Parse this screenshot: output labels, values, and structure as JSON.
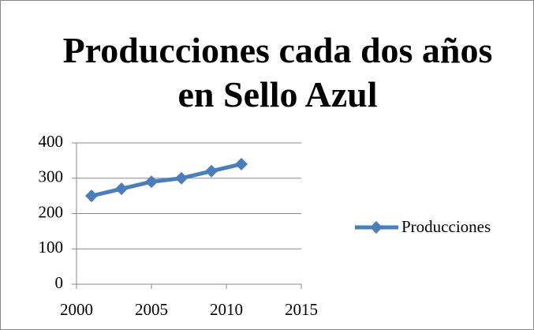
{
  "chart_data": {
    "type": "line",
    "title": "Producciones cada dos años en Sello Azul",
    "x": [
      2001,
      2003,
      2005,
      2007,
      2009,
      2011
    ],
    "series": [
      {
        "name": "Producciones",
        "color": "#4a7ebb",
        "values": [
          250,
          270,
          290,
          300,
          320,
          340
        ]
      }
    ],
    "xlim": [
      2000,
      2015
    ],
    "xticks": [
      2000,
      2005,
      2010,
      2015
    ],
    "ylim": [
      0,
      400
    ],
    "yticks": [
      0,
      100,
      200,
      300,
      400
    ],
    "grid": true,
    "legend": "right"
  }
}
